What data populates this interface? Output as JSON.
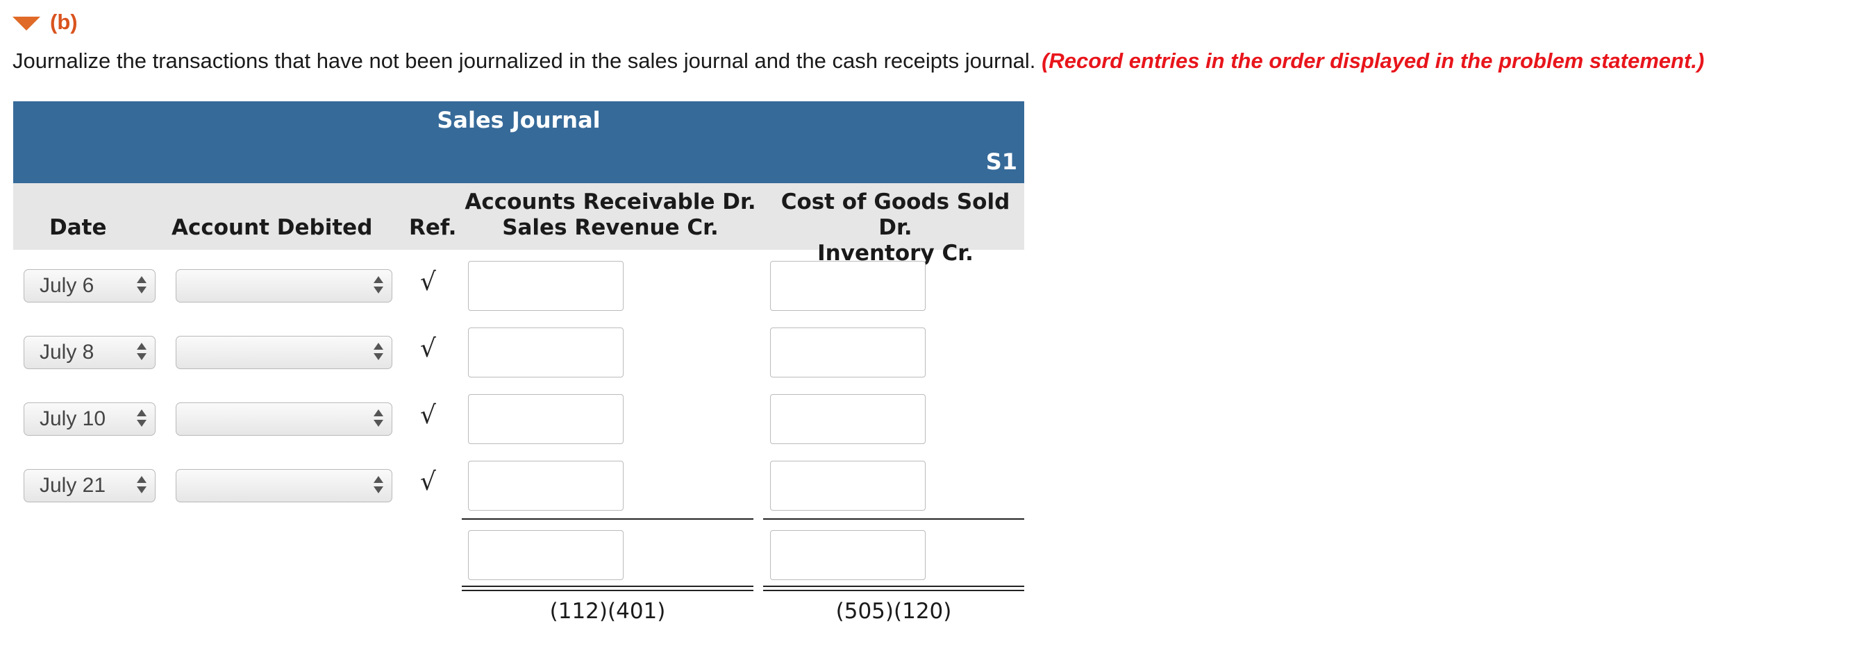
{
  "section": {
    "label": "(b)"
  },
  "instructions": {
    "text": "Journalize the transactions that have not been journalized in the sales journal and the cash receipts journal.",
    "emphasis": "(Record entries in the order displayed in the problem statement.)"
  },
  "journal": {
    "title": "Sales Journal",
    "ref": "S1",
    "headers": {
      "date": "Date",
      "account": "Account Debited",
      "ref": "Ref.",
      "ar_line1": "Accounts Receivable Dr.",
      "ar_line2": "Sales Revenue Cr.",
      "cogs_line1": "Cost of Goods Sold Dr.",
      "cogs_line2": "Inventory Cr."
    },
    "rows": [
      {
        "date": "July 6",
        "account": "",
        "ref": "√",
        "ar": "",
        "cogs": ""
      },
      {
        "date": "July 8",
        "account": "",
        "ref": "√",
        "ar": "",
        "cogs": ""
      },
      {
        "date": "July 10",
        "account": "",
        "ref": "√",
        "ar": "",
        "cogs": ""
      },
      {
        "date": "July 21",
        "account": "",
        "ref": "√",
        "ar": "",
        "cogs": ""
      }
    ],
    "totals": {
      "ar": "",
      "cogs": ""
    },
    "posting_refs": {
      "ar": "(112)(401)",
      "cogs": "(505)(120)"
    }
  },
  "colors": {
    "title_bar": "#366a99",
    "header_bar": "#e6e6e6",
    "accent": "#d9531e",
    "emphasis": "#e8151b"
  },
  "icons": {
    "caret": "caret-down-icon",
    "select_arrows": "updown-arrows-icon"
  }
}
